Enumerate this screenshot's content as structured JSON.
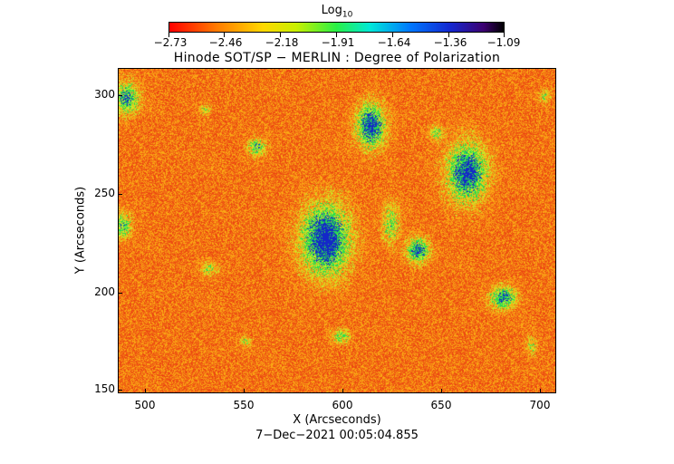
{
  "colorbar": {
    "title_main": "Log",
    "title_sub": "10",
    "tick_labels": [
      "−2.73",
      "−2.46",
      "−2.18",
      "−1.91",
      "−1.64",
      "−1.36",
      "−1.09"
    ]
  },
  "plot": {
    "title": "Hinode SOT/SP − MERLIN : Degree of Polarization",
    "x_axis_title": "X (Arcseconds)",
    "y_axis_title": "Y (Arcseconds)",
    "x_ticks": [
      "500",
      "550",
      "600",
      "650",
      "700"
    ],
    "y_ticks": [
      "300",
      "250",
      "200",
      "150"
    ],
    "timestamp": "7−Dec−2021 00:05:04.855"
  },
  "colors": {
    "background_field": "#f06010",
    "network_high": "#1428d0",
    "network_mid": "#28f046"
  }
}
